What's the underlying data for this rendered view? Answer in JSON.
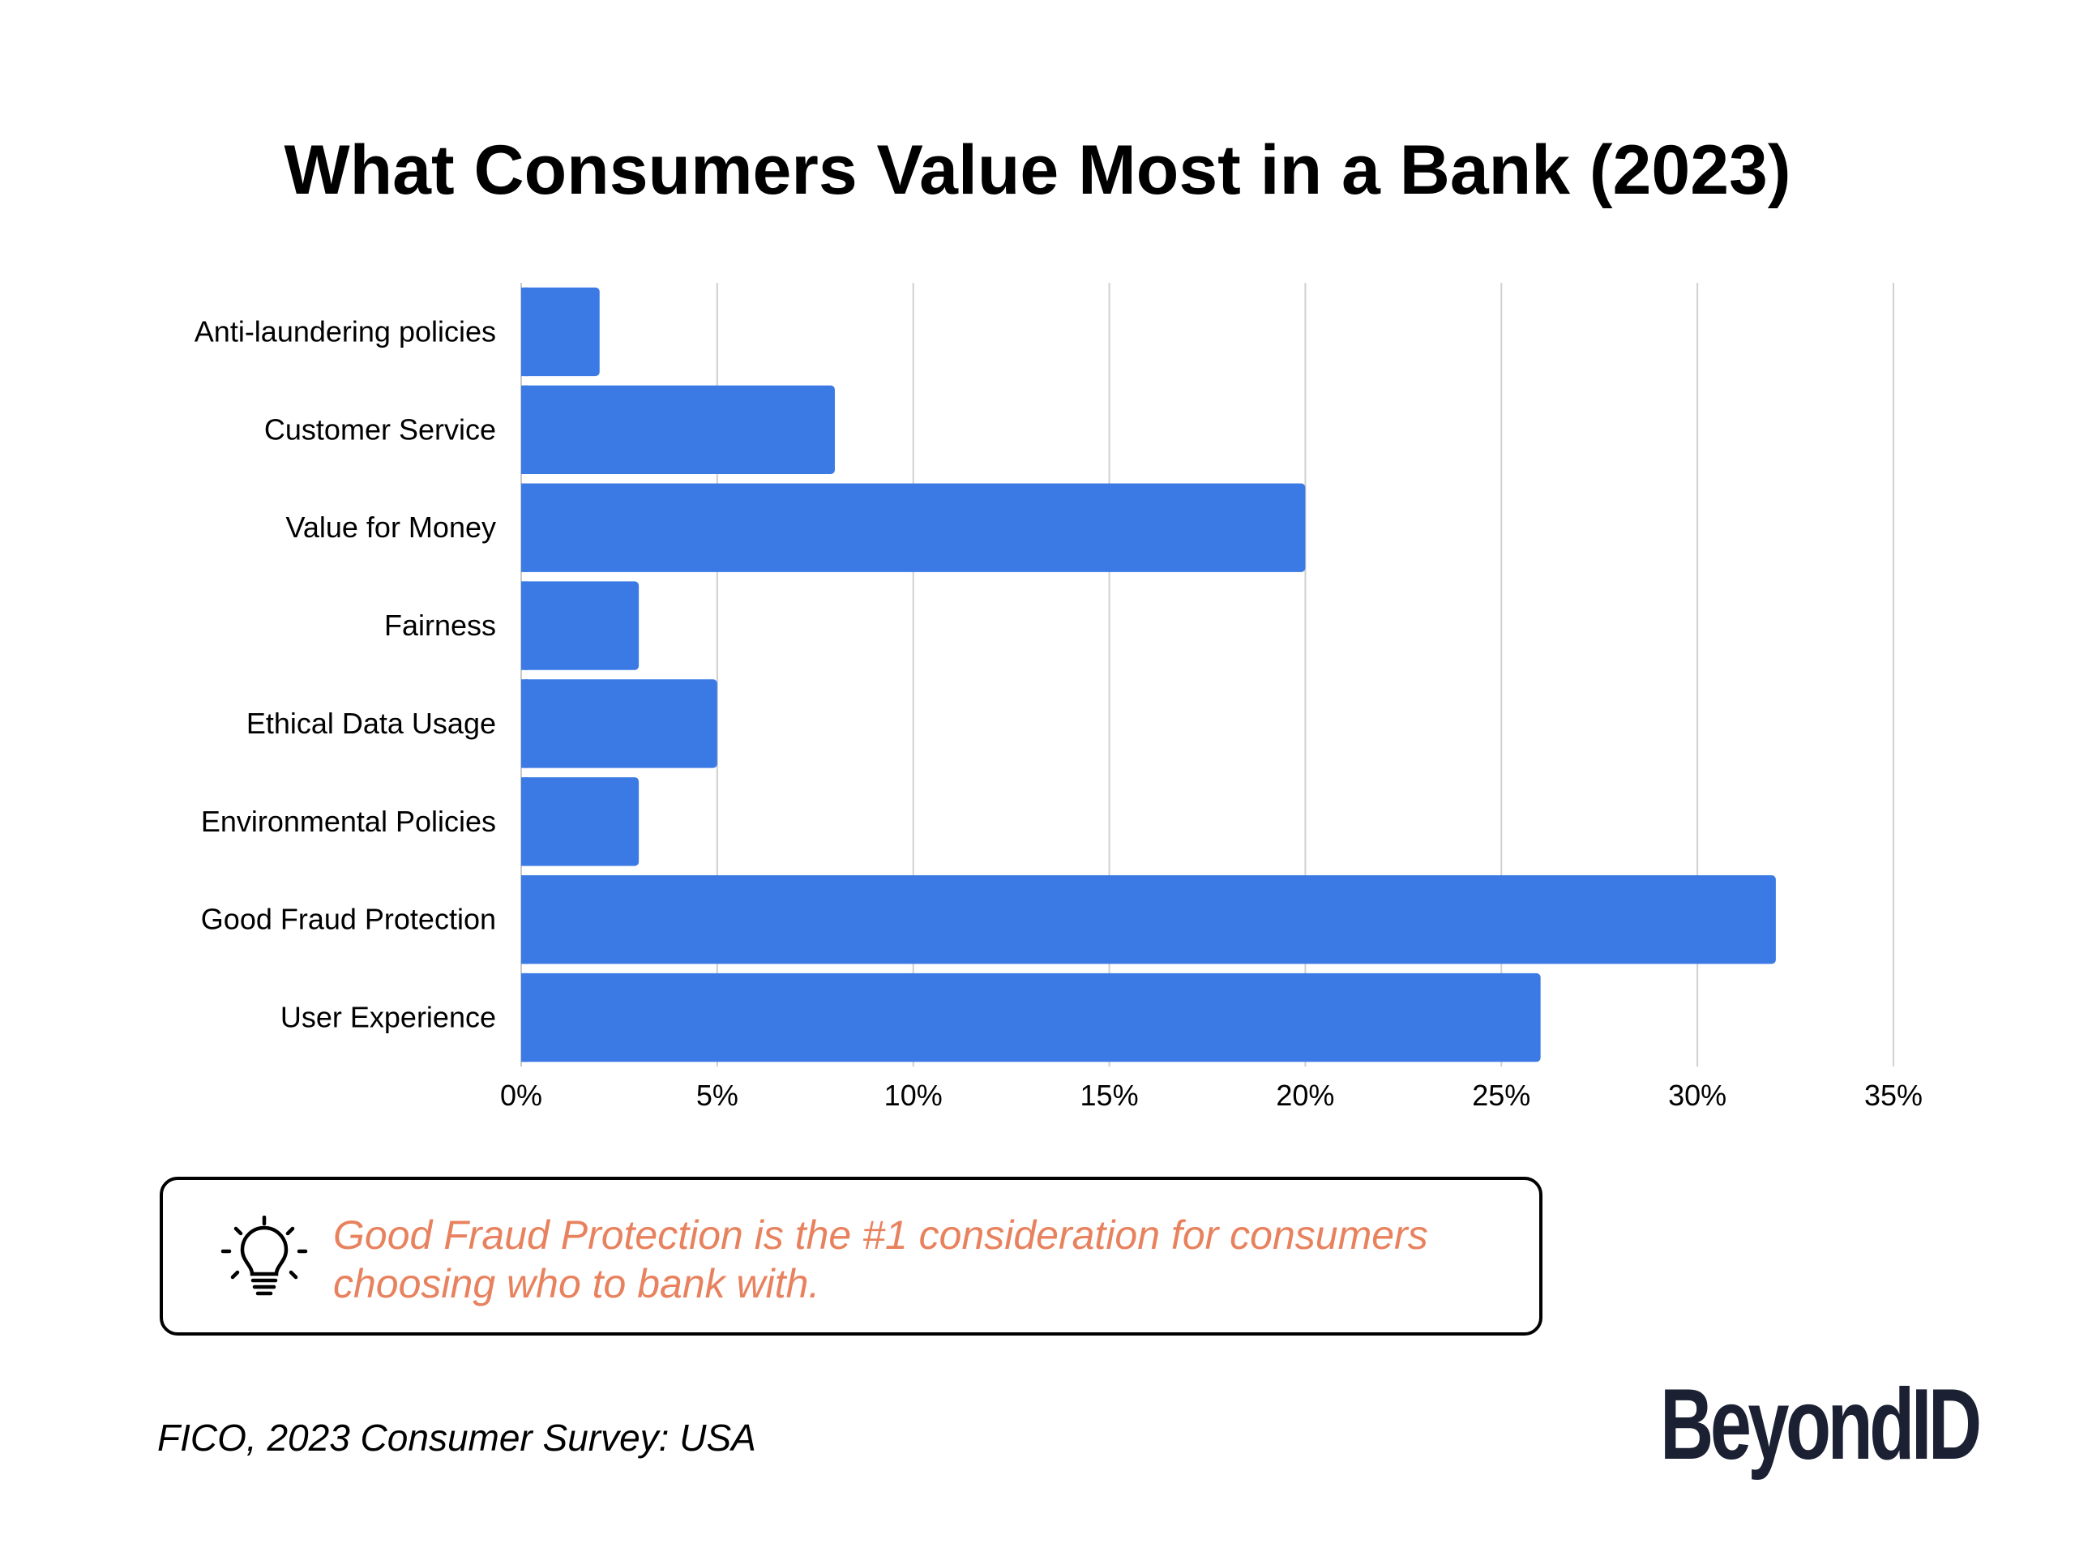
{
  "title": "What Consumers Value Most in a Bank (2023)",
  "chart_data": {
    "type": "bar",
    "orientation": "horizontal",
    "title": "What Consumers Value Most in a Bank (2023)",
    "categories": [
      "Anti-laundering policies",
      "Customer Service",
      "Value for Money",
      "Fairness",
      "Ethical Data Usage",
      "Environmental Policies",
      "Good Fraud Protection",
      "User Experience"
    ],
    "values": [
      2,
      8,
      20,
      3,
      5,
      3,
      32,
      26
    ],
    "xlim": [
      0,
      35
    ],
    "xticks": [
      0,
      5,
      10,
      15,
      20,
      25,
      30,
      35
    ],
    "tick_labels": [
      "0%",
      "5%",
      "10%",
      "15%",
      "20%",
      "25%",
      "30%",
      "35%"
    ],
    "unit": "%",
    "grid": "vertical",
    "bar_color": "#3b7ae4",
    "xlabel": "",
    "ylabel": ""
  },
  "insight": {
    "icon": "lightbulb-icon",
    "text": "Good Fraud Protection is the #1 consideration for consumers choosing who to bank with.",
    "color": "#e8825e"
  },
  "source": "FICO, 2023 Consumer Survey: USA",
  "logo": "BeyondID"
}
